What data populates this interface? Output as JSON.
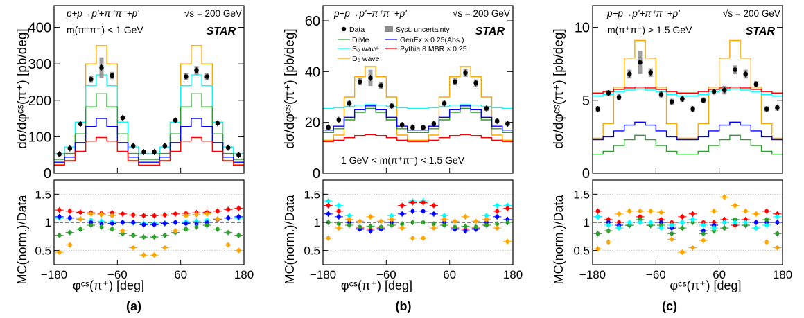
{
  "colors": {
    "data": "#000000",
    "syst": "#8c8c8c",
    "DiMe": "#2ca02c",
    "S0": "#00ffff",
    "D0": "#ffa500",
    "GenEx": "#0000ff",
    "Pythia": "#ff0000"
  },
  "chart_data": [
    {
      "type": "line",
      "panel_label": "(a)",
      "process": "p+p→p'+π⁺π⁻+p'",
      "energy": "√s = 200 GeV",
      "experiment": "STAR",
      "mass_cut": "m(π⁺π⁻) < 1 GeV",
      "ylabel": "dσ/dφᶜˢ(π⁺) [pb/deg]",
      "ratio_ylabel": "MC(norm.)/Data",
      "xlabel": "φᶜˢ(π⁺) [deg]",
      "xlim": [
        -180,
        180
      ],
      "ylim": [
        0,
        460
      ],
      "yticks": [
        0,
        100,
        200,
        300,
        400
      ],
      "ratio_ylim": [
        0.25,
        1.75
      ],
      "ratio_yticks": [
        0.5,
        1,
        1.5
      ],
      "xticks": [
        -180,
        -60,
        60,
        180
      ],
      "x": [
        -170,
        -150,
        -130,
        -110,
        -90,
        -70,
        -50,
        -30,
        -10,
        10,
        30,
        50,
        70,
        90,
        110,
        130,
        150,
        170
      ],
      "data": [
        52,
        68,
        135,
        258,
        290,
        268,
        152,
        75,
        58,
        58,
        75,
        145,
        265,
        282,
        265,
        137,
        70,
        50
      ],
      "syst": [
        2,
        2,
        4,
        10,
        28,
        10,
        4,
        2,
        1,
        1,
        2,
        4,
        10,
        12,
        10,
        4,
        2,
        2
      ],
      "series": [
        {
          "name": "D₀ wave",
          "color": "D0",
          "values": [
            24,
            35,
            140,
            300,
            350,
            300,
            140,
            35,
            22,
            22,
            35,
            140,
            300,
            350,
            300,
            140,
            35,
            24
          ]
        },
        {
          "name": "S₀ wave",
          "color": "S0",
          "values": [
            54,
            72,
            140,
            240,
            270,
            240,
            140,
            72,
            54,
            54,
            72,
            140,
            240,
            270,
            240,
            140,
            72,
            54
          ]
        },
        {
          "name": "DiMe",
          "color": "DiMe",
          "values": [
            38,
            54,
            108,
            182,
            218,
            182,
            108,
            54,
            38,
            38,
            54,
            108,
            182,
            218,
            182,
            108,
            54,
            38
          ]
        },
        {
          "name": "GenEx × 0.25(Abs.)",
          "color": "GenEx",
          "values": [
            30,
            44,
            84,
            128,
            150,
            128,
            84,
            44,
            30,
            30,
            44,
            84,
            128,
            150,
            128,
            84,
            44,
            30
          ]
        },
        {
          "name": "Pythia 8 MBR × 0.25",
          "color": "Pythia",
          "values": [
            22,
            34,
            60,
            88,
            98,
            88,
            60,
            34,
            22,
            22,
            34,
            60,
            88,
            98,
            88,
            60,
            34,
            22
          ]
        }
      ],
      "ratios": [
        {
          "color": "Pythia",
          "values": [
            1.22,
            1.2,
            1.18,
            1.17,
            1.16,
            1.17,
            1.15,
            1.13,
            1.12,
            1.12,
            1.13,
            1.15,
            1.16,
            1.17,
            1.18,
            1.2,
            1.23,
            1.25
          ]
        },
        {
          "color": "S0",
          "values": [
            1.08,
            1.07,
            1.06,
            1.04,
            1.02,
            1.01,
            1.0,
            0.99,
            0.98,
            0.98,
            0.99,
            1.0,
            1.01,
            1.02,
            1.04,
            1.06,
            1.07,
            1.08
          ]
        },
        {
          "color": "GenEx",
          "values": [
            1.1,
            1.08,
            1.06,
            1.0,
            0.97,
            0.98,
            1.0,
            1.0,
            0.96,
            0.96,
            0.98,
            1.0,
            0.98,
            0.97,
            1.0,
            1.05,
            1.08,
            1.1
          ]
        },
        {
          "color": "DiMe",
          "values": [
            0.77,
            0.82,
            0.88,
            0.95,
            0.92,
            0.88,
            0.8,
            0.77,
            0.74,
            0.74,
            0.77,
            0.82,
            0.88,
            0.92,
            0.95,
            0.88,
            0.82,
            0.77
          ]
        },
        {
          "color": "D0",
          "values": [
            0.47,
            0.6,
            1.06,
            1.15,
            1.14,
            1.12,
            0.85,
            0.55,
            0.42,
            0.42,
            0.55,
            0.85,
            1.12,
            1.14,
            1.15,
            1.06,
            0.6,
            0.5
          ]
        }
      ]
    },
    {
      "type": "line",
      "panel_label": "(b)",
      "process": "p+p→p'+π⁺π⁻+p'",
      "energy": "√s = 200 GeV",
      "experiment": "STAR",
      "mass_cut": "1 GeV < m(π⁺π⁻) < 1.5 GeV",
      "ylabel": "dσ/dφᶜˢ(π⁺) [pb/deg]",
      "ratio_ylabel": "MC(norm.)/Data",
      "xlabel": "φᶜˢ(π⁺) [deg]",
      "xlim": [
        -180,
        180
      ],
      "ylim": [
        0,
        66
      ],
      "yticks": [
        0,
        20,
        40,
        60
      ],
      "ratio_ylim": [
        0.25,
        1.75
      ],
      "ratio_yticks": [
        0.5,
        1,
        1.5
      ],
      "xticks": [
        -180,
        -60,
        60,
        180
      ],
      "legend": {
        "data": "Data",
        "syst": "Syst. uncertainty",
        "dime": "DiMe",
        "genex": "GenEx × 0.25(Abs.)",
        "s0": "S₀ wave",
        "pythia": "Pythia 8 MBR × 0.25",
        "d0": "D₀ wave"
      },
      "x": [
        -170,
        -150,
        -130,
        -110,
        -90,
        -70,
        -50,
        -30,
        -10,
        10,
        30,
        50,
        70,
        90,
        110,
        130,
        150,
        170
      ],
      "data": [
        18,
        21,
        27.5,
        36,
        37.5,
        34.5,
        26.5,
        19,
        18,
        18,
        19.5,
        27.5,
        36,
        39.5,
        35.5,
        25.5,
        20.5,
        19.5
      ],
      "syst": [
        0.8,
        0.8,
        1.0,
        1.4,
        3.2,
        1.4,
        1.0,
        0.8,
        0.8,
        0.8,
        0.8,
        1.0,
        1.4,
        1.6,
        1.4,
        1.0,
        0.8,
        0.8
      ],
      "series": [
        {
          "name": "D₀ wave",
          "color": "D0",
          "values": [
            13,
            15,
            30,
            38,
            42,
            38,
            30,
            15,
            13,
            13,
            15,
            30,
            38,
            42,
            38,
            30,
            15,
            13
          ]
        },
        {
          "name": "S₀ wave",
          "color": "S0",
          "values": [
            25.5,
            25.8,
            26.3,
            26.8,
            27.0,
            26.8,
            26.3,
            25.8,
            25.5,
            25.5,
            25.8,
            26.3,
            26.8,
            27.0,
            26.8,
            26.3,
            25.8,
            25.5
          ]
        },
        {
          "name": "DiMe",
          "color": "DiMe",
          "values": [
            16,
            17.5,
            21,
            24,
            25.5,
            24,
            21,
            17.5,
            16,
            16,
            17.5,
            21,
            24,
            25.5,
            24,
            21,
            17.5,
            16
          ]
        },
        {
          "name": "GenEx × 0.25(Abs.)",
          "color": "GenEx",
          "values": [
            17,
            18.5,
            22,
            25,
            26.5,
            25,
            22,
            18.5,
            17,
            17,
            18.5,
            22,
            25,
            26.5,
            25,
            22,
            18.5,
            17
          ]
        },
        {
          "name": "Pythia 8 MBR × 0.25",
          "color": "Pythia",
          "values": [
            12.5,
            13,
            14,
            14.8,
            15.2,
            14.8,
            14,
            13,
            12.5,
            12.5,
            13,
            14,
            14.8,
            15.2,
            14.8,
            14,
            13,
            12.5
          ]
        }
      ],
      "ratios": [
        {
          "color": "S0",
          "values": [
            1.38,
            1.3,
            1.12,
            0.9,
            0.85,
            0.9,
            1.12,
            1.3,
            1.38,
            1.38,
            1.3,
            1.12,
            0.9,
            0.85,
            0.9,
            1.12,
            1.3,
            1.3
          ]
        },
        {
          "color": "Pythia",
          "values": [
            1.3,
            1.2,
            1.05,
            0.9,
            0.88,
            0.9,
            1.05,
            1.3,
            1.35,
            1.35,
            1.3,
            1.05,
            0.9,
            0.88,
            0.9,
            1.05,
            1.2,
            1.25
          ]
        },
        {
          "color": "GenEx",
          "values": [
            1.15,
            1.1,
            1.0,
            0.88,
            0.85,
            0.88,
            1.0,
            1.15,
            1.2,
            1.2,
            1.15,
            1.0,
            0.88,
            0.85,
            0.88,
            1.0,
            1.1,
            1.05
          ]
        },
        {
          "color": "DiMe",
          "values": [
            1.0,
            0.97,
            0.95,
            0.92,
            0.93,
            0.92,
            0.95,
            0.97,
            1.0,
            1.0,
            0.97,
            0.95,
            0.92,
            0.93,
            0.92,
            0.95,
            0.97,
            1.0
          ]
        },
        {
          "color": "D0",
          "values": [
            0.72,
            0.9,
            1.05,
            1.02,
            1.1,
            1.02,
            1.05,
            0.9,
            0.72,
            0.72,
            0.9,
            1.05,
            1.02,
            1.1,
            1.02,
            1.05,
            0.9,
            0.66
          ]
        }
      ]
    },
    {
      "type": "line",
      "panel_label": "(c)",
      "process": "p+p→p'+π⁺π⁻+p'",
      "energy": "√s = 200 GeV",
      "experiment": "STAR",
      "mass_cut": "m(π⁺π⁻) > 1.5 GeV",
      "ylabel": "dσ/dφᶜˢ(π⁺) [pb/deg]",
      "ratio_ylabel": "MC(norm.)/Data",
      "xlabel": "φᶜˢ(π⁺) [deg]",
      "xlim": [
        -180,
        180
      ],
      "ylim": [
        0,
        11.5
      ],
      "yticks": [
        0,
        5,
        10
      ],
      "ratio_ylim": [
        0.25,
        1.75
      ],
      "ratio_yticks": [
        0.5,
        1,
        1.5
      ],
      "xticks": [
        -180,
        -60,
        60,
        180
      ],
      "x": [
        -170,
        -150,
        -130,
        -110,
        -90,
        -70,
        -50,
        -30,
        -10,
        10,
        30,
        50,
        70,
        90,
        110,
        130,
        150,
        170
      ],
      "data": [
        4.4,
        5.5,
        5.2,
        6.8,
        7.6,
        6.9,
        5.4,
        4.9,
        5.1,
        4.4,
        5.0,
        5.6,
        5.7,
        7.1,
        6.8,
        6.1,
        4.4,
        4.5
      ],
      "syst": [
        0.2,
        0.2,
        0.2,
        0.3,
        0.8,
        0.3,
        0.2,
        0.2,
        0.2,
        0.2,
        0.2,
        0.2,
        0.3,
        0.3,
        0.3,
        0.2,
        0.2,
        0.2
      ],
      "series": [
        {
          "name": "D₀ wave",
          "color": "D0",
          "values": [
            2.4,
            3.4,
            5.9,
            7.9,
            9.1,
            7.9,
            5.9,
            3.4,
            2.4,
            2.4,
            3.4,
            5.9,
            7.9,
            9.1,
            7.9,
            5.9,
            3.4,
            2.4
          ]
        },
        {
          "name": "S₀ wave",
          "color": "S0",
          "values": [
            5.3,
            5.4,
            5.6,
            5.7,
            5.8,
            5.7,
            5.6,
            5.4,
            5.3,
            5.3,
            5.4,
            5.6,
            5.7,
            5.8,
            5.7,
            5.6,
            5.4,
            5.3
          ]
        },
        {
          "name": "Pythia 8 MBR × 0.25",
          "color": "Pythia",
          "values": [
            5.5,
            5.6,
            5.75,
            5.85,
            5.9,
            5.85,
            5.75,
            5.6,
            5.5,
            5.5,
            5.6,
            5.75,
            5.85,
            5.9,
            5.85,
            5.75,
            5.6,
            5.5
          ]
        },
        {
          "name": "GenEx × 0.25(Abs.)",
          "color": "GenEx",
          "values": [
            2.3,
            2.5,
            2.9,
            3.3,
            3.5,
            3.3,
            2.9,
            2.5,
            2.3,
            2.3,
            2.5,
            2.9,
            3.3,
            3.5,
            3.3,
            2.9,
            2.5,
            2.3
          ]
        },
        {
          "name": "DiMe",
          "color": "DiMe",
          "values": [
            1.3,
            1.5,
            1.9,
            2.3,
            2.6,
            2.3,
            1.9,
            1.5,
            1.3,
            1.3,
            1.5,
            1.9,
            2.3,
            2.6,
            2.3,
            1.9,
            1.5,
            1.3
          ]
        }
      ],
      "ratios": [
        {
          "color": "Pythia",
          "values": [
            1.2,
            1.05,
            1.0,
            0.95,
            1.1,
            0.95,
            1.05,
            1.0,
            1.1,
            1.15,
            1.0,
            1.0,
            1.05,
            0.95,
            1.05,
            1.0,
            1.2,
            1.15
          ]
        },
        {
          "color": "GenEx",
          "values": [
            1.1,
            1.0,
            0.95,
            0.95,
            1.0,
            0.95,
            1.0,
            0.9,
            1.0,
            1.05,
            0.85,
            0.95,
            1.0,
            1.05,
            0.95,
            1.0,
            1.0,
            1.0
          ]
        },
        {
          "color": "DiMe",
          "values": [
            0.8,
            0.85,
            0.9,
            0.95,
            1.05,
            0.95,
            0.95,
            0.8,
            0.9,
            1.0,
            0.8,
            0.85,
            0.9,
            1.05,
            0.95,
            0.9,
            1.05,
            0.8
          ]
        },
        {
          "color": "S0",
          "values": [
            1.1,
            0.95,
            0.9,
            1.0,
            1.0,
            1.0,
            0.9,
            0.95,
            1.0,
            1.05,
            0.95,
            0.9,
            1.0,
            1.0,
            1.0,
            0.9,
            0.95,
            1.1
          ]
        },
        {
          "color": "D0",
          "values": [
            0.53,
            0.65,
            1.15,
            1.2,
            1.2,
            1.2,
            1.18,
            0.7,
            0.47,
            0.55,
            0.68,
            1.2,
            1.45,
            1.3,
            1.2,
            1.15,
            0.65,
            0.55
          ]
        }
      ]
    }
  ]
}
